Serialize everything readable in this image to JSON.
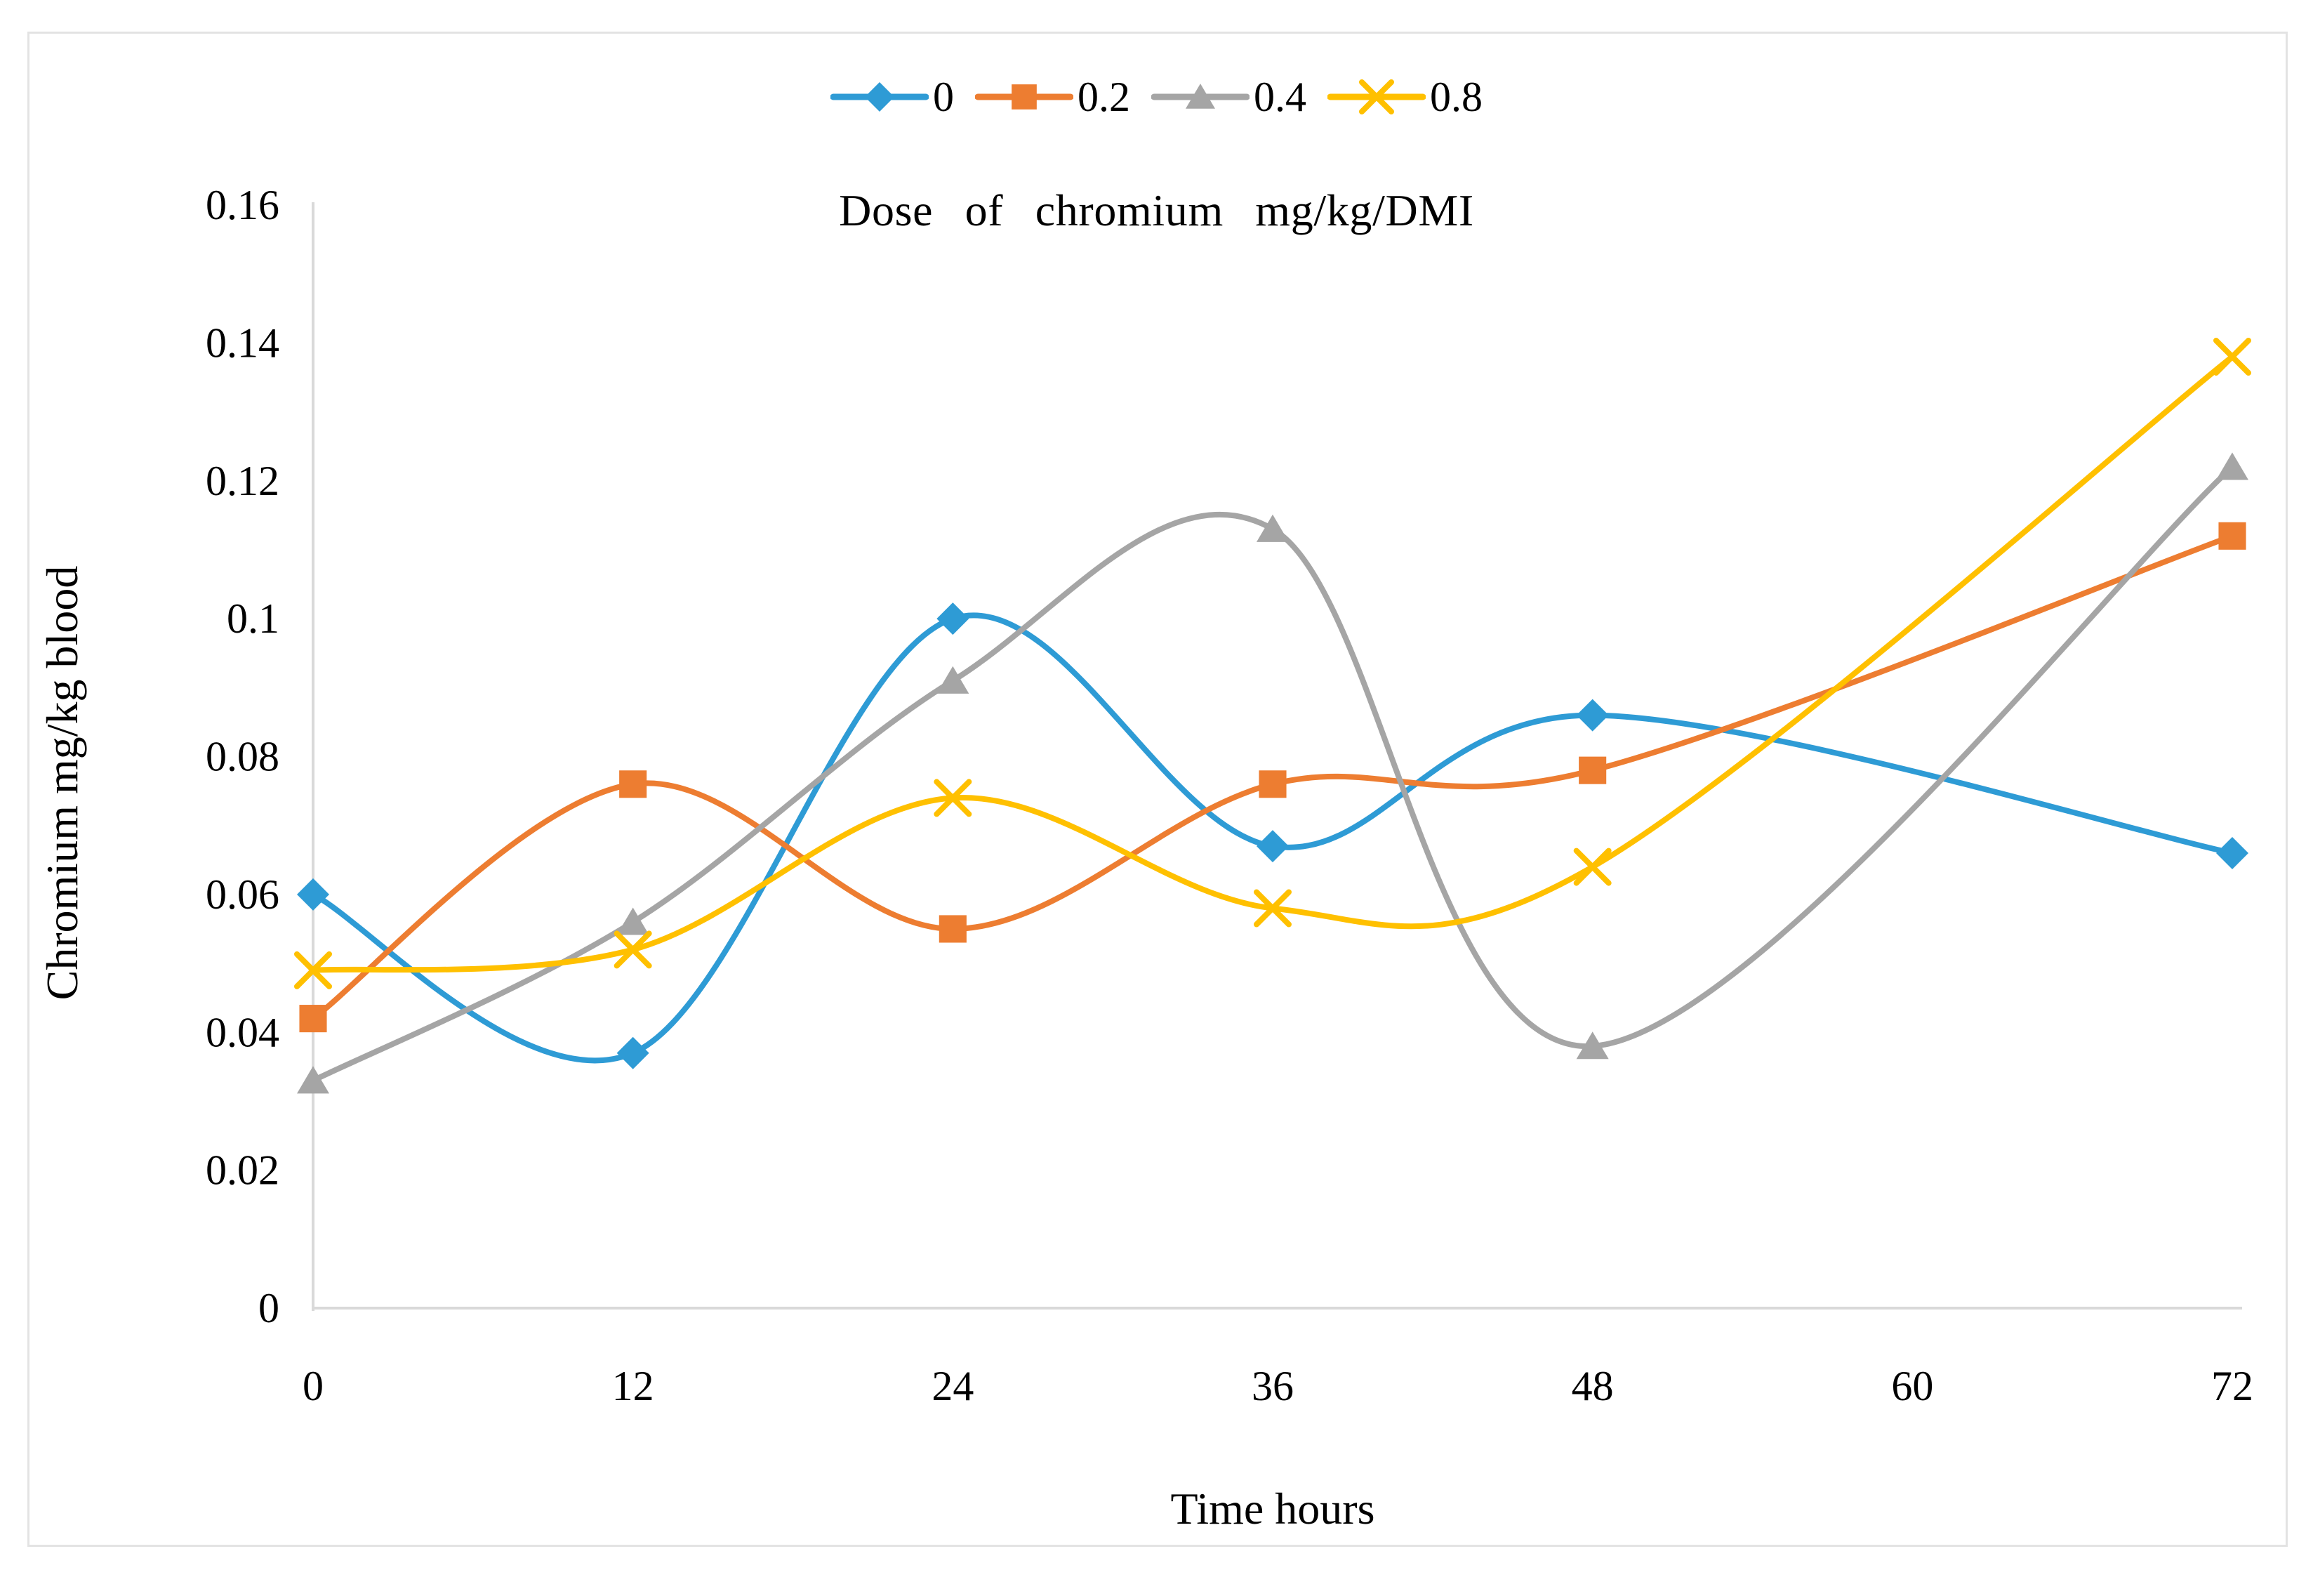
{
  "chart_data": {
    "type": "line",
    "title": "Dose of chromium mg/kg/DMI",
    "xlabel": "Time hours",
    "ylabel": "Chromium mg/kg blood",
    "legend_position": "top-center",
    "grid": false,
    "smooth": true,
    "x": [
      0,
      12,
      24,
      36,
      48,
      72
    ],
    "xlim": [
      0,
      72
    ],
    "ylim": [
      0,
      0.16
    ],
    "x_tick_values": [
      0,
      12,
      24,
      36,
      48,
      60,
      72
    ],
    "x_tick_labels": [
      "0",
      "12",
      "24",
      "36",
      "48",
      "60",
      "72"
    ],
    "y_tick_values": [
      0,
      0.02,
      0.04,
      0.06,
      0.08,
      0.1,
      0.12,
      0.14,
      0.16
    ],
    "y_tick_labels": [
      "0",
      "0.02",
      "0.04",
      "0.06",
      "0.08",
      "0.1",
      "0.12",
      "0.14",
      "0.16"
    ],
    "axis_line_color": "#d9d9d9",
    "frame_color": "#e3e3e3",
    "series": [
      {
        "name": "0",
        "color": "#2e9bd5",
        "marker": "diamond",
        "values": [
          0.06,
          0.037,
          0.1,
          0.067,
          0.086,
          0.066
        ]
      },
      {
        "name": "0.2",
        "color": "#ed7d31",
        "marker": "square",
        "values": [
          0.042,
          0.076,
          0.055,
          0.076,
          0.078,
          0.112
        ]
      },
      {
        "name": "0.4",
        "color": "#a5a5a5",
        "marker": "triangle",
        "values": [
          0.033,
          0.056,
          0.091,
          0.113,
          0.038,
          0.122
        ]
      },
      {
        "name": "0.8",
        "color": "#ffc000",
        "marker": "x",
        "values": [
          0.049,
          0.052,
          0.074,
          0.058,
          0.064,
          0.138
        ]
      }
    ]
  }
}
